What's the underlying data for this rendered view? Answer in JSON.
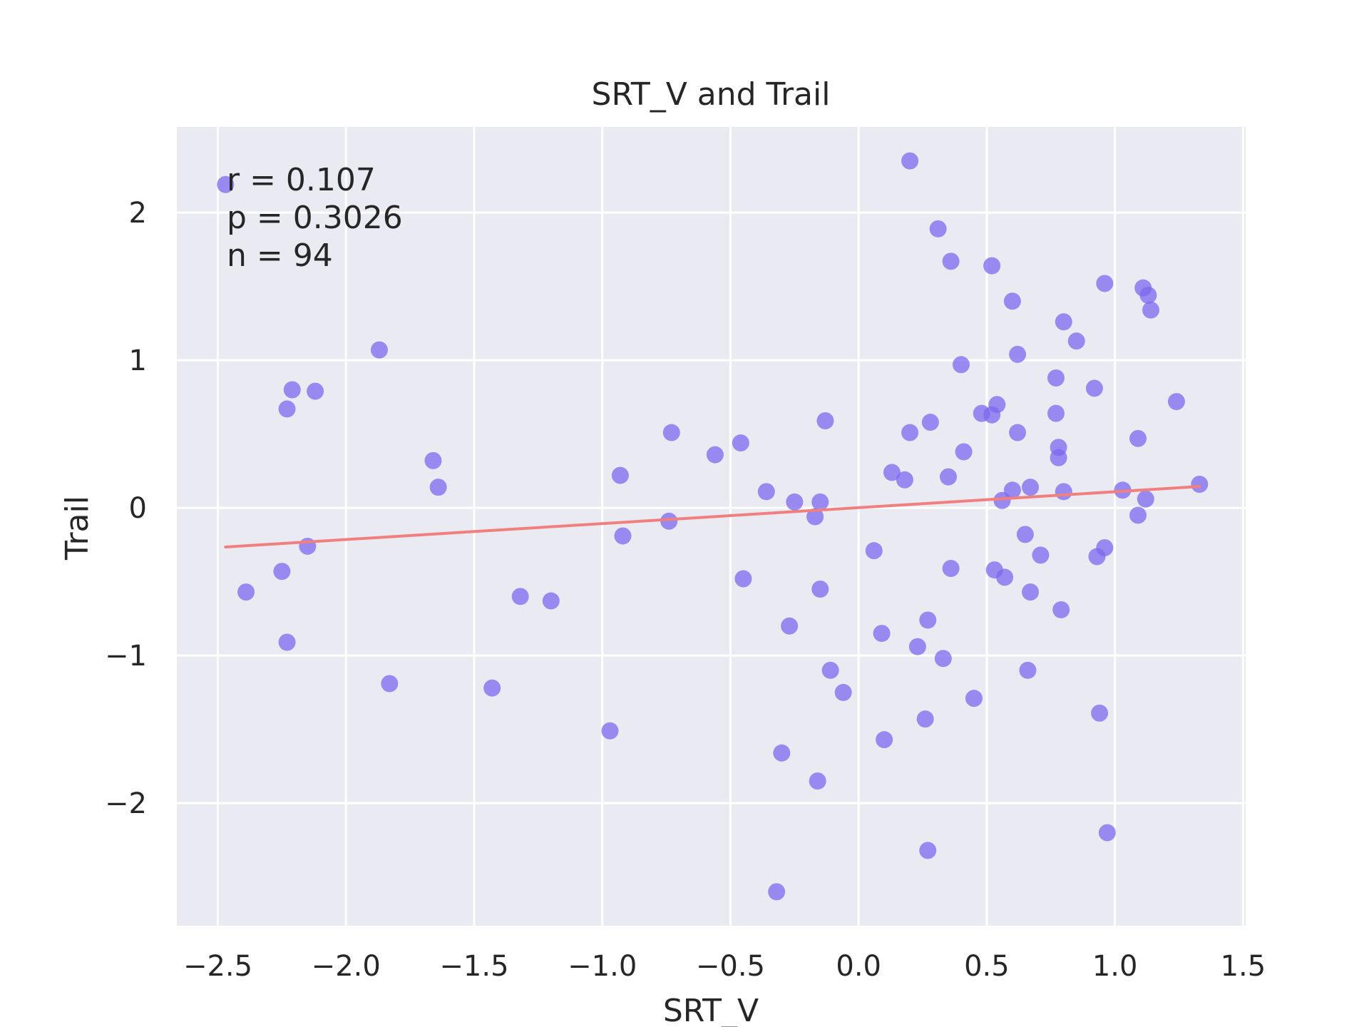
{
  "chart_data": {
    "type": "scatter",
    "title": "SRT_V and Trail",
    "xlabel": "SRT_V",
    "ylabel": "Trail",
    "xlim": [
      -2.66,
      1.51
    ],
    "ylim": [
      -2.83,
      2.58
    ],
    "xticks": [
      -2.5,
      -2.0,
      -1.5,
      -1.0,
      -0.5,
      0.0,
      0.5,
      1.0,
      1.5
    ],
    "xtick_labels": [
      "−2.5",
      "−2.0",
      "−1.5",
      "−1.0",
      "−0.5",
      "0.0",
      "0.5",
      "1.0",
      "1.5"
    ],
    "yticks": [
      -2,
      -1,
      0,
      1,
      2
    ],
    "ytick_labels": [
      "−2",
      "−1",
      "0",
      "1",
      "2"
    ],
    "grid": true,
    "background_color": "#EAEAF2",
    "grid_color": "#FFFFFF",
    "point_color": "#7B68EE",
    "line_color": "#F08080",
    "annotation": [
      "r = 0.107",
      "p = 0.3026",
      "n = 94"
    ],
    "regression_line": {
      "x": [
        -2.47,
        1.33
      ],
      "y": [
        -0.265,
        0.145
      ]
    },
    "points": [
      [
        -2.47,
        2.19
      ],
      [
        -2.39,
        -0.57
      ],
      [
        -2.25,
        -0.43
      ],
      [
        -2.23,
        0.67
      ],
      [
        -2.23,
        -0.91
      ],
      [
        -2.21,
        0.8
      ],
      [
        -2.15,
        -0.26
      ],
      [
        -2.12,
        0.79
      ],
      [
        -1.87,
        1.07
      ],
      [
        -1.83,
        -1.19
      ],
      [
        -1.66,
        0.32
      ],
      [
        -1.64,
        0.14
      ],
      [
        -1.43,
        -1.22
      ],
      [
        -1.32,
        -0.6
      ],
      [
        -1.2,
        -0.63
      ],
      [
        -0.97,
        -1.51
      ],
      [
        -0.93,
        0.22
      ],
      [
        -0.92,
        -0.19
      ],
      [
        -0.74,
        -0.09
      ],
      [
        -0.73,
        0.51
      ],
      [
        -0.56,
        0.36
      ],
      [
        -0.46,
        0.44
      ],
      [
        -0.45,
        -0.48
      ],
      [
        -0.36,
        0.11
      ],
      [
        -0.3,
        -1.66
      ],
      [
        -0.32,
        -2.6
      ],
      [
        -0.27,
        -0.8
      ],
      [
        -0.25,
        0.04
      ],
      [
        -0.17,
        -0.06
      ],
      [
        -0.16,
        -1.85
      ],
      [
        -0.15,
        0.04
      ],
      [
        -0.15,
        -0.55
      ],
      [
        -0.13,
        0.59
      ],
      [
        -0.11,
        -1.1
      ],
      [
        -0.06,
        -1.25
      ],
      [
        0.06,
        -0.29
      ],
      [
        0.09,
        -0.85
      ],
      [
        0.1,
        -1.57
      ],
      [
        0.13,
        0.24
      ],
      [
        0.18,
        0.19
      ],
      [
        0.2,
        0.51
      ],
      [
        0.2,
        2.35
      ],
      [
        0.23,
        -0.94
      ],
      [
        0.26,
        -1.43
      ],
      [
        0.27,
        -0.76
      ],
      [
        0.27,
        -2.32
      ],
      [
        0.28,
        0.58
      ],
      [
        0.31,
        1.89
      ],
      [
        0.33,
        -1.02
      ],
      [
        0.35,
        0.21
      ],
      [
        0.36,
        1.67
      ],
      [
        0.36,
        -0.41
      ],
      [
        0.4,
        0.97
      ],
      [
        0.41,
        0.38
      ],
      [
        0.45,
        -1.29
      ],
      [
        0.48,
        0.64
      ],
      [
        0.52,
        1.64
      ],
      [
        0.52,
        0.63
      ],
      [
        0.53,
        -0.42
      ],
      [
        0.54,
        0.7
      ],
      [
        0.56,
        0.05
      ],
      [
        0.57,
        -0.47
      ],
      [
        0.6,
        1.4
      ],
      [
        0.6,
        0.12
      ],
      [
        0.62,
        1.04
      ],
      [
        0.62,
        0.51
      ],
      [
        0.65,
        -0.18
      ],
      [
        0.66,
        -1.1
      ],
      [
        0.67,
        0.14
      ],
      [
        0.67,
        -0.57
      ],
      [
        0.71,
        -0.32
      ],
      [
        0.77,
        0.88
      ],
      [
        0.77,
        0.64
      ],
      [
        0.78,
        0.41
      ],
      [
        0.78,
        0.34
      ],
      [
        0.79,
        -0.69
      ],
      [
        0.8,
        1.26
      ],
      [
        0.8,
        0.11
      ],
      [
        0.85,
        1.13
      ],
      [
        0.92,
        0.81
      ],
      [
        0.93,
        -0.33
      ],
      [
        0.94,
        -1.39
      ],
      [
        0.96,
        1.52
      ],
      [
        0.96,
        -0.27
      ],
      [
        0.97,
        -2.2
      ],
      [
        1.03,
        0.12
      ],
      [
        1.09,
        0.47
      ],
      [
        1.09,
        -0.05
      ],
      [
        1.11,
        1.49
      ],
      [
        1.12,
        0.06
      ],
      [
        1.13,
        1.44
      ],
      [
        1.14,
        1.34
      ],
      [
        1.24,
        0.72
      ],
      [
        1.33,
        0.16
      ]
    ]
  }
}
